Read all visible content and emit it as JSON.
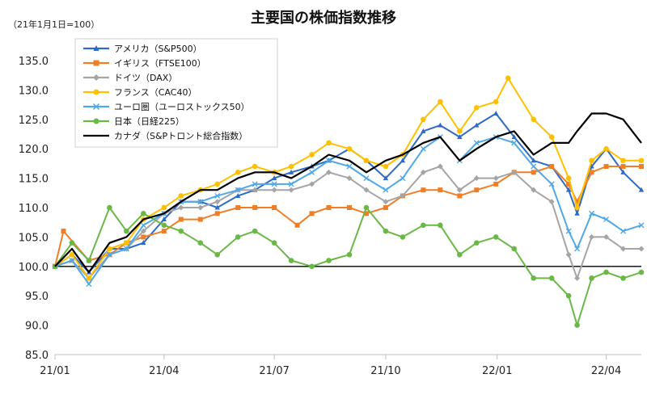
{
  "chart_data": {
    "type": "line",
    "title": "主要国の株価指数推移",
    "unit_note": "（21年1月1日=100）",
    "xlabel": "",
    "ylabel": "",
    "ylim": [
      85,
      135
    ],
    "y_ticks": [
      "85.0",
      "90.0",
      "95.0",
      "100.0",
      "105.0",
      "110.0",
      "115.0",
      "120.0",
      "125.0",
      "130.0",
      "135.0"
    ],
    "x_ticks": [
      "21/01",
      "21/04",
      "21/07",
      "21/10",
      "22/01",
      "22/04"
    ],
    "x_start": "2021-01-01",
    "x_end": "2022-04-30",
    "reference_line": 100,
    "legend_position": "top-left",
    "grid": false,
    "series": [
      {
        "name": "アメリカ（S&P500）",
        "color": "#2E6BC6",
        "marker": "triangle",
        "points": [
          [
            "2021-01-01",
            100
          ],
          [
            "2021-01-15",
            102
          ],
          [
            "2021-01-29",
            99
          ],
          [
            "2021-02-15",
            103
          ],
          [
            "2021-03-01",
            103
          ],
          [
            "2021-03-15",
            104
          ],
          [
            "2021-04-01",
            108
          ],
          [
            "2021-04-15",
            111
          ],
          [
            "2021-05-01",
            111
          ],
          [
            "2021-05-15",
            110
          ],
          [
            "2021-06-01",
            112
          ],
          [
            "2021-06-15",
            113
          ],
          [
            "2021-07-01",
            115
          ],
          [
            "2021-07-15",
            116
          ],
          [
            "2021-08-01",
            117
          ],
          [
            "2021-08-15",
            118
          ],
          [
            "2021-09-01",
            120
          ],
          [
            "2021-09-15",
            118
          ],
          [
            "2021-10-01",
            115
          ],
          [
            "2021-10-15",
            118
          ],
          [
            "2021-11-01",
            123
          ],
          [
            "2021-11-15",
            124
          ],
          [
            "2021-12-01",
            122
          ],
          [
            "2021-12-15",
            124
          ],
          [
            "2021-12-31",
            126
          ],
          [
            "2022-01-15",
            122
          ],
          [
            "2022-01-31",
            118
          ],
          [
            "2022-02-15",
            117
          ],
          [
            "2022-03-01",
            113
          ],
          [
            "2022-03-08",
            109
          ],
          [
            "2022-03-20",
            117
          ],
          [
            "2022-04-01",
            120
          ],
          [
            "2022-04-15",
            116
          ],
          [
            "2022-04-30",
            113
          ]
        ]
      },
      {
        "name": "イギリス（FTSE100）",
        "color": "#F07E26",
        "marker": "square",
        "points": [
          [
            "2021-01-01",
            100
          ],
          [
            "2021-01-08",
            106
          ],
          [
            "2021-01-29",
            101
          ],
          [
            "2021-02-15",
            102
          ],
          [
            "2021-03-01",
            104
          ],
          [
            "2021-03-15",
            105
          ],
          [
            "2021-04-01",
            106
          ],
          [
            "2021-04-15",
            108
          ],
          [
            "2021-05-01",
            108
          ],
          [
            "2021-05-15",
            109
          ],
          [
            "2021-06-01",
            110
          ],
          [
            "2021-06-15",
            110
          ],
          [
            "2021-07-01",
            110
          ],
          [
            "2021-07-20",
            107
          ],
          [
            "2021-08-01",
            109
          ],
          [
            "2021-08-15",
            110
          ],
          [
            "2021-09-01",
            110
          ],
          [
            "2021-09-15",
            109
          ],
          [
            "2021-10-01",
            110
          ],
          [
            "2021-10-15",
            112
          ],
          [
            "2021-11-01",
            113
          ],
          [
            "2021-11-15",
            113
          ],
          [
            "2021-12-01",
            112
          ],
          [
            "2021-12-15",
            113
          ],
          [
            "2021-12-31",
            114
          ],
          [
            "2022-01-15",
            116
          ],
          [
            "2022-01-31",
            116
          ],
          [
            "2022-02-15",
            117
          ],
          [
            "2022-03-01",
            114
          ],
          [
            "2022-03-08",
            111
          ],
          [
            "2022-03-20",
            116
          ],
          [
            "2022-04-01",
            117
          ],
          [
            "2022-04-15",
            117
          ],
          [
            "2022-04-30",
            117
          ]
        ]
      },
      {
        "name": "ドイツ（DAX）",
        "color": "#A5A5A5",
        "marker": "diamond",
        "points": [
          [
            "2021-01-01",
            100
          ],
          [
            "2021-01-15",
            101
          ],
          [
            "2021-01-29",
            98
          ],
          [
            "2021-02-15",
            102
          ],
          [
            "2021-03-01",
            103
          ],
          [
            "2021-03-15",
            106
          ],
          [
            "2021-04-01",
            109
          ],
          [
            "2021-04-15",
            110
          ],
          [
            "2021-05-01",
            110
          ],
          [
            "2021-05-15",
            111
          ],
          [
            "2021-06-01",
            113
          ],
          [
            "2021-06-15",
            113
          ],
          [
            "2021-07-01",
            113
          ],
          [
            "2021-07-15",
            113
          ],
          [
            "2021-08-01",
            114
          ],
          [
            "2021-08-15",
            116
          ],
          [
            "2021-09-01",
            115
          ],
          [
            "2021-09-15",
            113
          ],
          [
            "2021-10-01",
            111
          ],
          [
            "2021-10-15",
            112
          ],
          [
            "2021-11-01",
            116
          ],
          [
            "2021-11-15",
            117
          ],
          [
            "2021-12-01",
            113
          ],
          [
            "2021-12-15",
            115
          ],
          [
            "2021-12-31",
            115
          ],
          [
            "2022-01-15",
            116
          ],
          [
            "2022-01-31",
            113
          ],
          [
            "2022-02-15",
            111
          ],
          [
            "2022-03-01",
            102
          ],
          [
            "2022-03-08",
            98
          ],
          [
            "2022-03-20",
            105
          ],
          [
            "2022-04-01",
            105
          ],
          [
            "2022-04-15",
            103
          ],
          [
            "2022-04-30",
            103
          ]
        ]
      },
      {
        "name": "フランス（CAC40）",
        "color": "#FFC000",
        "marker": "circle",
        "points": [
          [
            "2021-01-01",
            100
          ],
          [
            "2021-01-15",
            102
          ],
          [
            "2021-01-29",
            98
          ],
          [
            "2021-02-15",
            103
          ],
          [
            "2021-03-01",
            104
          ],
          [
            "2021-03-15",
            108
          ],
          [
            "2021-04-01",
            110
          ],
          [
            "2021-04-15",
            112
          ],
          [
            "2021-05-01",
            113
          ],
          [
            "2021-05-15",
            114
          ],
          [
            "2021-06-01",
            116
          ],
          [
            "2021-06-15",
            117
          ],
          [
            "2021-07-01",
            116
          ],
          [
            "2021-07-15",
            117
          ],
          [
            "2021-08-01",
            119
          ],
          [
            "2021-08-15",
            121
          ],
          [
            "2021-09-01",
            120
          ],
          [
            "2021-09-15",
            118
          ],
          [
            "2021-10-01",
            117
          ],
          [
            "2021-10-15",
            119
          ],
          [
            "2021-11-01",
            125
          ],
          [
            "2021-11-15",
            128
          ],
          [
            "2021-12-01",
            123
          ],
          [
            "2021-12-15",
            127
          ],
          [
            "2021-12-31",
            128
          ],
          [
            "2022-01-10",
            132
          ],
          [
            "2022-01-31",
            125
          ],
          [
            "2022-02-15",
            122
          ],
          [
            "2022-03-01",
            115
          ],
          [
            "2022-03-08",
            110
          ],
          [
            "2022-03-20",
            118
          ],
          [
            "2022-04-01",
            120
          ],
          [
            "2022-04-15",
            118
          ],
          [
            "2022-04-30",
            118
          ]
        ]
      },
      {
        "name": "ユーロ圏（ユーロストックス50）",
        "color": "#4FA8E8",
        "marker": "x",
        "points": [
          [
            "2021-01-01",
            100
          ],
          [
            "2021-01-15",
            101
          ],
          [
            "2021-01-29",
            97
          ],
          [
            "2021-02-15",
            102
          ],
          [
            "2021-03-01",
            103
          ],
          [
            "2021-03-15",
            107
          ],
          [
            "2021-04-01",
            109
          ],
          [
            "2021-04-15",
            111
          ],
          [
            "2021-05-01",
            111
          ],
          [
            "2021-05-15",
            112
          ],
          [
            "2021-06-01",
            113
          ],
          [
            "2021-06-15",
            114
          ],
          [
            "2021-07-01",
            114
          ],
          [
            "2021-07-15",
            114
          ],
          [
            "2021-08-01",
            116
          ],
          [
            "2021-08-15",
            118
          ],
          [
            "2021-09-01",
            117
          ],
          [
            "2021-09-15",
            115
          ],
          [
            "2021-10-01",
            113
          ],
          [
            "2021-10-15",
            115
          ],
          [
            "2021-11-01",
            120
          ],
          [
            "2021-11-15",
            122
          ],
          [
            "2021-12-01",
            118
          ],
          [
            "2021-12-15",
            121
          ],
          [
            "2021-12-31",
            122
          ],
          [
            "2022-01-15",
            121
          ],
          [
            "2022-01-31",
            117
          ],
          [
            "2022-02-15",
            114
          ],
          [
            "2022-03-01",
            106
          ],
          [
            "2022-03-08",
            103
          ],
          [
            "2022-03-20",
            109
          ],
          [
            "2022-04-01",
            108
          ],
          [
            "2022-04-15",
            106
          ],
          [
            "2022-04-30",
            107
          ]
        ]
      },
      {
        "name": "日本（日経225）",
        "color": "#6AB845",
        "marker": "circle",
        "points": [
          [
            "2021-01-01",
            100
          ],
          [
            "2021-01-15",
            104
          ],
          [
            "2021-01-29",
            101
          ],
          [
            "2021-02-15",
            110
          ],
          [
            "2021-03-01",
            106
          ],
          [
            "2021-03-15",
            109
          ],
          [
            "2021-04-01",
            107
          ],
          [
            "2021-04-15",
            106
          ],
          [
            "2021-05-01",
            104
          ],
          [
            "2021-05-15",
            102
          ],
          [
            "2021-06-01",
            105
          ],
          [
            "2021-06-15",
            106
          ],
          [
            "2021-07-01",
            104
          ],
          [
            "2021-07-15",
            101
          ],
          [
            "2021-08-01",
            100
          ],
          [
            "2021-08-15",
            101
          ],
          [
            "2021-09-01",
            102
          ],
          [
            "2021-09-15",
            110
          ],
          [
            "2021-10-01",
            106
          ],
          [
            "2021-10-15",
            105
          ],
          [
            "2021-11-01",
            107
          ],
          [
            "2021-11-15",
            107
          ],
          [
            "2021-12-01",
            102
          ],
          [
            "2021-12-15",
            104
          ],
          [
            "2021-12-31",
            105
          ],
          [
            "2022-01-15",
            103
          ],
          [
            "2022-01-31",
            98
          ],
          [
            "2022-02-15",
            98
          ],
          [
            "2022-03-01",
            95
          ],
          [
            "2022-03-08",
            90
          ],
          [
            "2022-03-20",
            98
          ],
          [
            "2022-04-01",
            99
          ],
          [
            "2022-04-15",
            98
          ],
          [
            "2022-04-30",
            99
          ]
        ]
      },
      {
        "name": "カナダ（S&Pトロント総合指数）",
        "color": "#000000",
        "marker": "none",
        "points": [
          [
            "2021-01-01",
            100
          ],
          [
            "2021-01-15",
            103
          ],
          [
            "2021-01-29",
            99
          ],
          [
            "2021-02-15",
            104
          ],
          [
            "2021-03-01",
            105
          ],
          [
            "2021-03-15",
            108
          ],
          [
            "2021-04-01",
            109
          ],
          [
            "2021-04-15",
            111
          ],
          [
            "2021-05-01",
            113
          ],
          [
            "2021-05-15",
            113
          ],
          [
            "2021-06-01",
            115
          ],
          [
            "2021-06-15",
            116
          ],
          [
            "2021-07-01",
            116
          ],
          [
            "2021-07-15",
            115
          ],
          [
            "2021-08-01",
            117
          ],
          [
            "2021-08-15",
            119
          ],
          [
            "2021-09-01",
            118
          ],
          [
            "2021-09-15",
            116
          ],
          [
            "2021-10-01",
            118
          ],
          [
            "2021-10-15",
            119
          ],
          [
            "2021-11-01",
            121
          ],
          [
            "2021-11-15",
            122
          ],
          [
            "2021-12-01",
            118
          ],
          [
            "2021-12-15",
            120
          ],
          [
            "2021-12-31",
            122
          ],
          [
            "2022-01-15",
            123
          ],
          [
            "2022-01-31",
            119
          ],
          [
            "2022-02-15",
            121
          ],
          [
            "2022-03-01",
            121
          ],
          [
            "2022-03-08",
            123
          ],
          [
            "2022-03-20",
            126
          ],
          [
            "2022-04-01",
            126
          ],
          [
            "2022-04-15",
            125
          ],
          [
            "2022-04-30",
            121
          ]
        ]
      }
    ]
  }
}
